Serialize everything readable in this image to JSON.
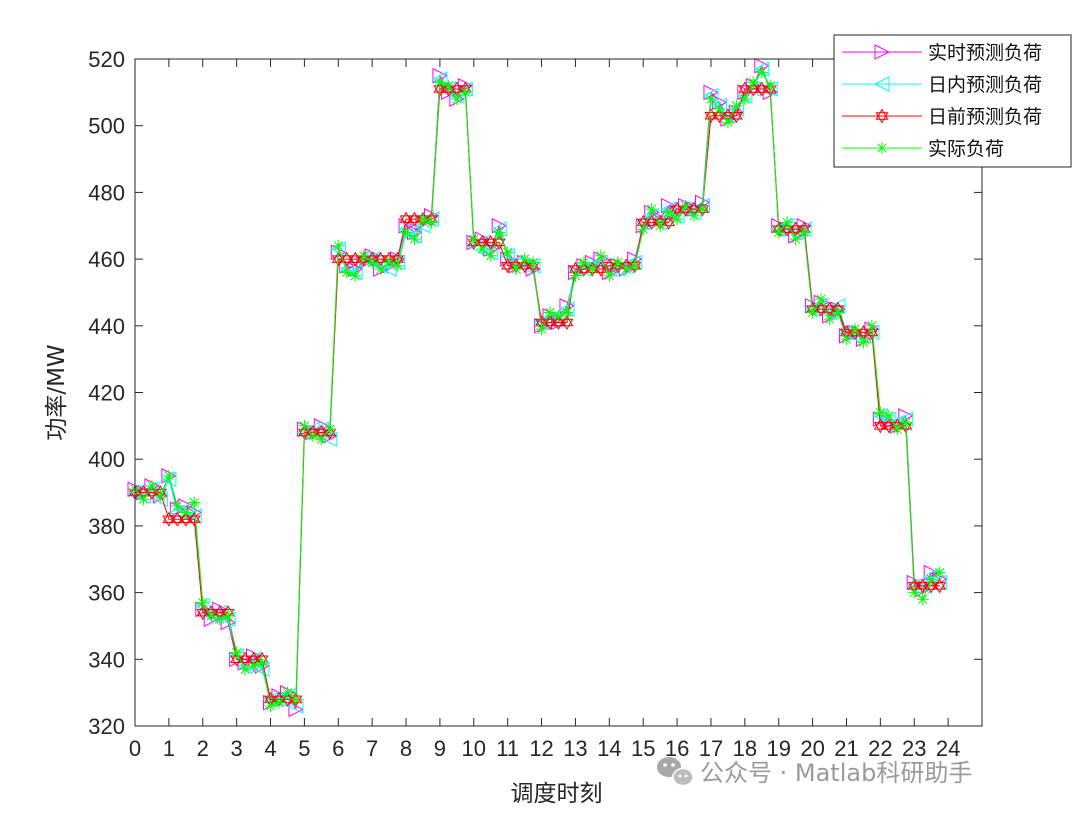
{
  "chart_data": {
    "type": "line",
    "xlabel": "调度时刻",
    "ylabel": "功率/MW",
    "xlim": [
      0,
      25
    ],
    "ylim": [
      320,
      520
    ],
    "x_ticks": [
      "0",
      "1",
      "2",
      "3",
      "4",
      "5",
      "6",
      "7",
      "8",
      "9",
      "10",
      "11",
      "12",
      "13",
      "14",
      "15",
      "16",
      "17",
      "18",
      "19",
      "20",
      "21",
      "22",
      "23",
      "24"
    ],
    "y_ticks": [
      "320",
      "340",
      "360",
      "380",
      "400",
      "420",
      "440",
      "460",
      "480",
      "500",
      "520"
    ],
    "grid": false,
    "legend_position": "top-right",
    "points_per_hour": 4,
    "series": [
      {
        "name": "实时预测负荷",
        "color": "#ff00ff",
        "marker": "triangle-right",
        "values": [
          391,
          390,
          392,
          389,
          395,
          385,
          386,
          384,
          355,
          352,
          355,
          351,
          340,
          339,
          341,
          338,
          327,
          329,
          330,
          325,
          409,
          408,
          410,
          407,
          462,
          458,
          457,
          459,
          461,
          457,
          458,
          460,
          470,
          468,
          471,
          473,
          515,
          510,
          508,
          512,
          465,
          466,
          463,
          470,
          460,
          458,
          459,
          457,
          440,
          443,
          441,
          446,
          456,
          458,
          459,
          460,
          456,
          458,
          457,
          460,
          470,
          474,
          472,
          476,
          474,
          476,
          475,
          477,
          510,
          507,
          502,
          504,
          510,
          512,
          518,
          510,
          470,
          469,
          467,
          470,
          446,
          447,
          443,
          445,
          437,
          438,
          436,
          439,
          412,
          411,
          410,
          413,
          363,
          361,
          366,
          364
        ]
      },
      {
        "name": "日内预测负荷",
        "color": "#00ffff",
        "marker": "triangle-left",
        "values": [
          390,
          389,
          391,
          388,
          394,
          384,
          385,
          383,
          356,
          353,
          354,
          352,
          341,
          338,
          340,
          337,
          328,
          328,
          329,
          326,
          408,
          409,
          409,
          406,
          463,
          457,
          456,
          460,
          460,
          458,
          457,
          459,
          469,
          467,
          470,
          472,
          514,
          511,
          509,
          511,
          464,
          465,
          462,
          469,
          461,
          459,
          458,
          458,
          441,
          442,
          442,
          445,
          457,
          457,
          458,
          459,
          457,
          457,
          458,
          459,
          471,
          473,
          471,
          475,
          473,
          475,
          474,
          476,
          509,
          506,
          503,
          505,
          509,
          511,
          517,
          511,
          469,
          470,
          468,
          469,
          445,
          446,
          444,
          446,
          438,
          437,
          437,
          438,
          413,
          412,
          411,
          412,
          362,
          362,
          365,
          363
        ]
      },
      {
        "name": "日前预测负荷",
        "color": "#ff0000",
        "marker": "hexagram",
        "values": [
          390,
          390,
          390,
          390,
          382,
          382,
          382,
          382,
          354,
          354,
          354,
          354,
          340,
          340,
          340,
          340,
          328,
          328,
          328,
          328,
          408,
          408,
          408,
          408,
          460,
          460,
          460,
          460,
          460,
          460,
          460,
          460,
          472,
          472,
          472,
          472,
          511,
          511,
          511,
          511,
          465,
          465,
          465,
          465,
          458,
          458,
          458,
          458,
          441,
          441,
          441,
          441,
          457,
          457,
          457,
          457,
          458,
          458,
          458,
          458,
          471,
          471,
          471,
          471,
          475,
          475,
          475,
          475,
          503,
          503,
          503,
          503,
          511,
          511,
          511,
          511,
          469,
          469,
          469,
          469,
          445,
          445,
          445,
          445,
          438,
          438,
          438,
          438,
          410,
          410,
          410,
          410,
          362,
          362,
          362,
          362
        ]
      },
      {
        "name": "实际负荷",
        "color": "#00ff00",
        "marker": "asterisk",
        "values": [
          391,
          388,
          392,
          389,
          395,
          386,
          384,
          387,
          357,
          353,
          352,
          353,
          342,
          337,
          338,
          339,
          326,
          327,
          330,
          328,
          410,
          407,
          406,
          409,
          464,
          456,
          455,
          461,
          459,
          457,
          459,
          458,
          468,
          466,
          472,
          471,
          513,
          512,
          508,
          510,
          466,
          463,
          461,
          468,
          462,
          457,
          460,
          459,
          439,
          444,
          443,
          444,
          455,
          459,
          457,
          461,
          455,
          459,
          457,
          458,
          469,
          475,
          470,
          474,
          472,
          476,
          473,
          475,
          508,
          505,
          501,
          506,
          508,
          513,
          516,
          512,
          468,
          471,
          466,
          468,
          444,
          448,
          442,
          444,
          436,
          439,
          435,
          440,
          414,
          413,
          409,
          411,
          360,
          358,
          364,
          366
        ]
      }
    ]
  },
  "watermark": {
    "text": "公众号 · Matlab科研助手"
  }
}
